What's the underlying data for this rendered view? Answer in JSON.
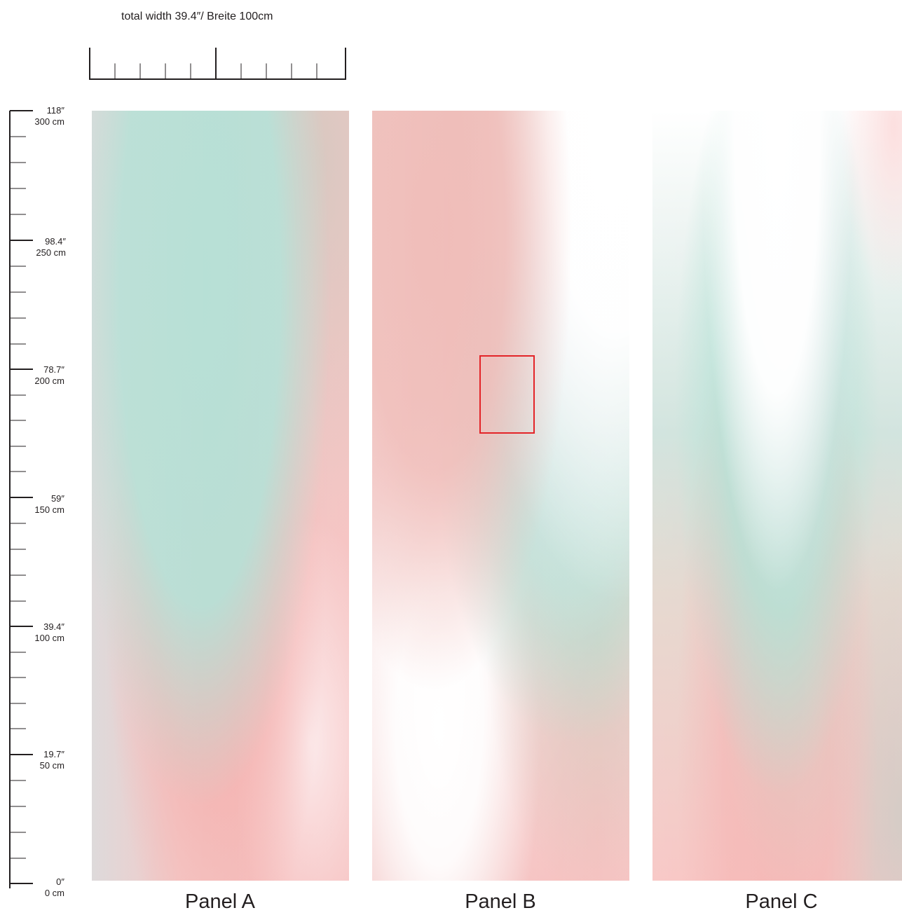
{
  "header": {
    "width_label": "total width 39.4″/ Breite 100cm"
  },
  "scale": {
    "height_labels": [
      {
        "inch": "118″",
        "cm": "300 cm"
      },
      {
        "inch": "98.4″",
        "cm": "250 cm"
      },
      {
        "inch": "78.7″",
        "cm": "200 cm"
      },
      {
        "inch": "59″",
        "cm": "150 cm"
      },
      {
        "inch": "39.4″",
        "cm": "100 cm"
      },
      {
        "inch": "19.7″",
        "cm": "50 cm"
      },
      {
        "inch": "0″",
        "cm": "0 cm"
      }
    ]
  },
  "panels": [
    {
      "label": "Panel A"
    },
    {
      "label": "Panel B"
    },
    {
      "label": "Panel C"
    }
  ],
  "colors": {
    "mint": "#b7e0d6",
    "blush": "#f6c2c1",
    "warm_grey": "#d8d0c6",
    "highlight": "#e32428",
    "ink": "#231f20"
  }
}
